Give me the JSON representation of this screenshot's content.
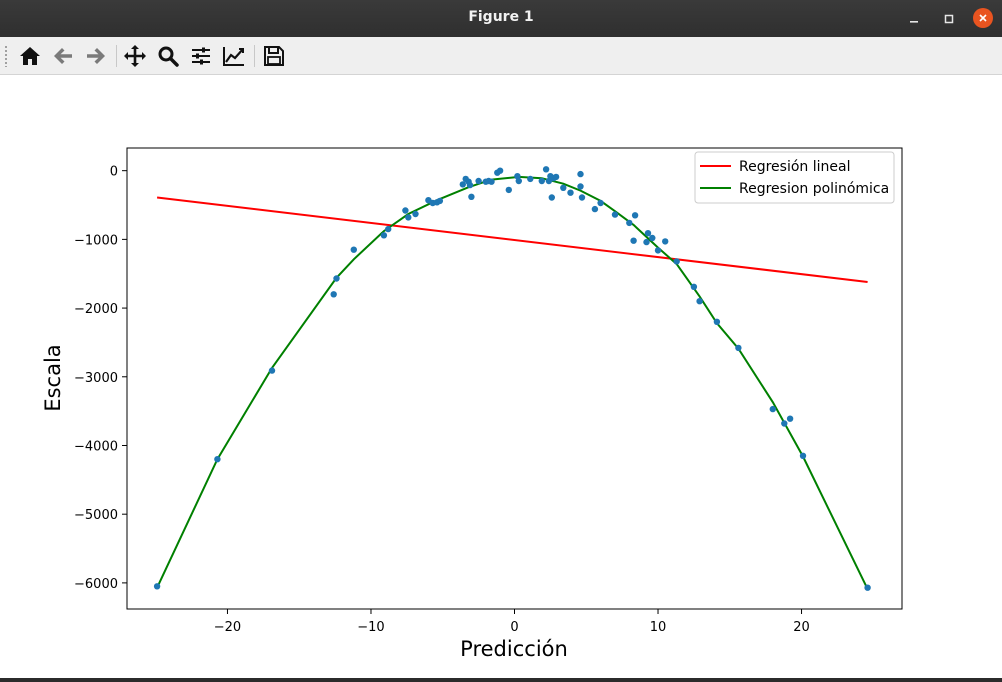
{
  "window": {
    "title": "Figure 1"
  },
  "toolbar": {
    "buttons": [
      {
        "icon": "home-icon"
      },
      {
        "icon": "back-arrow-icon"
      },
      {
        "icon": "forward-arrow-icon"
      },
      {
        "icon": "pan-icon"
      },
      {
        "icon": "zoom-icon"
      },
      {
        "icon": "configure-subplots-icon"
      },
      {
        "icon": "edit-axis-icon"
      },
      {
        "icon": "save-icon"
      }
    ]
  },
  "chart_data": {
    "type": "scatter",
    "xlabel": "Predicción",
    "ylabel": "Escala",
    "xlim": [
      -27,
      27
    ],
    "ylim": [
      -6380,
      330
    ],
    "xticks": [
      -20,
      -10,
      0,
      10,
      20
    ],
    "yticks": [
      0,
      -1000,
      -2000,
      -3000,
      -4000,
      -5000,
      -6000
    ],
    "legend_position": "top-right",
    "grid": false,
    "scatter": {
      "color": "#1f77b4",
      "points": [
        [
          -24.9,
          -6050
        ],
        [
          -20.7,
          -4200
        ],
        [
          -16.9,
          -2910
        ],
        [
          -12.6,
          -1800
        ],
        [
          -12.4,
          -1570
        ],
        [
          -11.2,
          -1150
        ],
        [
          -9.1,
          -940
        ],
        [
          -8.8,
          -850
        ],
        [
          -7.6,
          -580
        ],
        [
          -7.4,
          -680
        ],
        [
          -6.9,
          -630
        ],
        [
          -6.0,
          -430
        ],
        [
          -5.7,
          -470
        ],
        [
          -5.4,
          -460
        ],
        [
          -5.2,
          -440
        ],
        [
          -3.6,
          -200
        ],
        [
          -3.4,
          -120
        ],
        [
          -3.2,
          -160
        ],
        [
          -3.1,
          -210
        ],
        [
          -3.0,
          -380
        ],
        [
          -2.5,
          -150
        ],
        [
          -2.0,
          -160
        ],
        [
          -1.8,
          -150
        ],
        [
          -1.6,
          -160
        ],
        [
          -1.2,
          -30
        ],
        [
          -1.0,
          0
        ],
        [
          -0.4,
          -280
        ],
        [
          0.2,
          -80
        ],
        [
          0.3,
          -150
        ],
        [
          1.1,
          -120
        ],
        [
          1.9,
          -150
        ],
        [
          2.2,
          20
        ],
        [
          2.4,
          -150
        ],
        [
          2.5,
          -80
        ],
        [
          2.6,
          -390
        ],
        [
          2.7,
          -110
        ],
        [
          2.9,
          -90
        ],
        [
          3.4,
          -250
        ],
        [
          3.9,
          -320
        ],
        [
          4.6,
          -50
        ],
        [
          4.6,
          -230
        ],
        [
          4.7,
          -390
        ],
        [
          5.6,
          -560
        ],
        [
          6.0,
          -470
        ],
        [
          7.0,
          -640
        ],
        [
          8.0,
          -760
        ],
        [
          8.3,
          -1020
        ],
        [
          8.4,
          -650
        ],
        [
          9.2,
          -1040
        ],
        [
          9.3,
          -910
        ],
        [
          9.6,
          -980
        ],
        [
          10.0,
          -1160
        ],
        [
          10.5,
          -1030
        ],
        [
          11.3,
          -1320
        ],
        [
          12.5,
          -1690
        ],
        [
          12.9,
          -1900
        ],
        [
          14.1,
          -2200
        ],
        [
          15.6,
          -2580
        ],
        [
          18.0,
          -3470
        ],
        [
          18.8,
          -3680
        ],
        [
          19.2,
          -3610
        ],
        [
          20.1,
          -4150
        ],
        [
          24.6,
          -6070
        ]
      ]
    },
    "series": [
      {
        "name": "Regresión lineal",
        "color": "#ff0000",
        "x": [
          -24.9,
          24.6
        ],
        "y": [
          -390,
          -1620
        ]
      },
      {
        "name": "Regresion polinómica",
        "color": "#008000",
        "x": [
          -24.9,
          -20.7,
          -16.9,
          -12.4,
          -11.2,
          -9.1,
          -7.4,
          -5.4,
          -3.2,
          -1.6,
          0.3,
          1.9,
          3.4,
          4.6,
          6.0,
          7.0,
          8.3,
          10.0,
          11.3,
          12.9,
          14.1,
          15.6,
          18.0,
          20.1,
          24.6
        ],
        "y": [
          -6070,
          -4200,
          -2870,
          -1560,
          -1290,
          -880,
          -630,
          -430,
          -240,
          -130,
          -90,
          -110,
          -190,
          -290,
          -440,
          -590,
          -790,
          -1120,
          -1360,
          -1830,
          -2220,
          -2590,
          -3370,
          -4160,
          -6090
        ]
      }
    ]
  }
}
